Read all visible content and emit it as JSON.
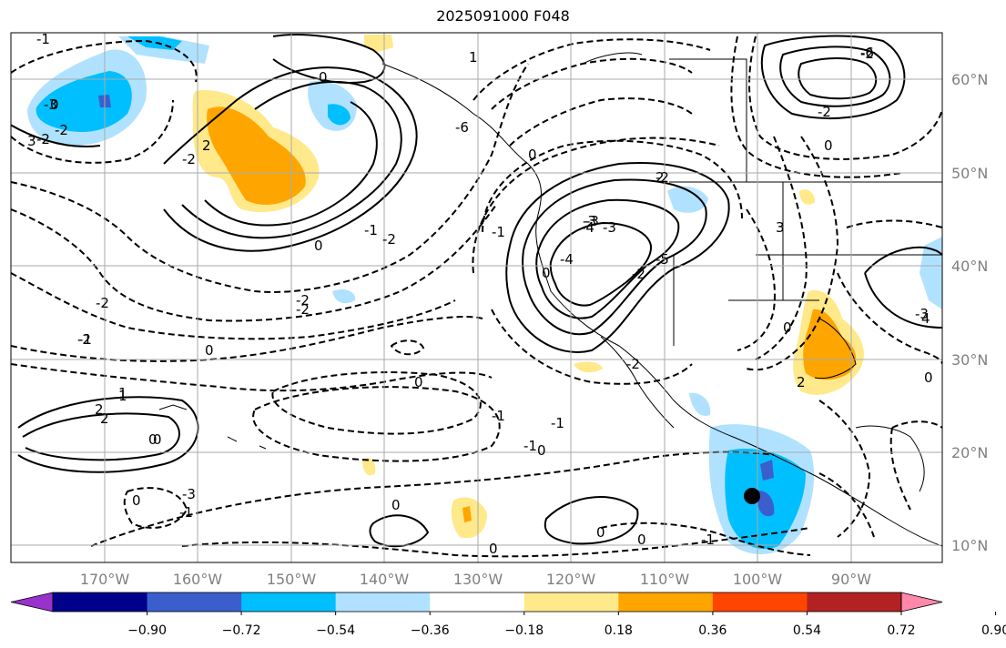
{
  "title": "2025091000 F048",
  "latitude_labels": [
    "60°N",
    "50°N",
    "40°N",
    "30°N",
    "20°N",
    "10°N"
  ],
  "longitude_labels": [
    "170°W",
    "160°W",
    "150°W",
    "140°W",
    "130°W",
    "120°W",
    "110°W",
    "100°W",
    "90°W"
  ],
  "colorbar": {
    "colors": [
      "#9932CC",
      "#00008B",
      "#3A5FCD",
      "#00BFFF",
      "#B0E2FF",
      "#FFFFFF",
      "#FFE98A",
      "#FFA500",
      "#FF4500",
      "#B22222",
      "#FF88AA"
    ],
    "tick_labels": [
      "−0.90",
      "−0.72",
      "−0.54",
      "−0.36",
      "−0.18",
      "0.18",
      "0.36",
      "0.54",
      "0.72",
      "0.90"
    ]
  },
  "contour_labels": [
    "0",
    "-2",
    "-1",
    "2",
    "0",
    "3",
    "-3",
    "-1",
    "0",
    "-6",
    "-4",
    "-3",
    "0",
    "0",
    "-2",
    "-1",
    "2",
    "-2",
    "-2",
    "0",
    "1",
    "2",
    "-3",
    "0",
    "-2",
    "0",
    "-2",
    "-4",
    "-5",
    "1",
    "-2",
    "-2",
    "-1",
    "0",
    "0",
    "-1",
    "-3",
    "-2",
    "0",
    "0",
    "2",
    "3",
    "4",
    "0",
    "-6",
    "-1",
    "-2",
    "0",
    "-3",
    "-2",
    "0",
    "0",
    "-2",
    "1",
    "-1",
    "-2",
    "0",
    "-3",
    "-1",
    "2",
    "0",
    "-1"
  ]
}
